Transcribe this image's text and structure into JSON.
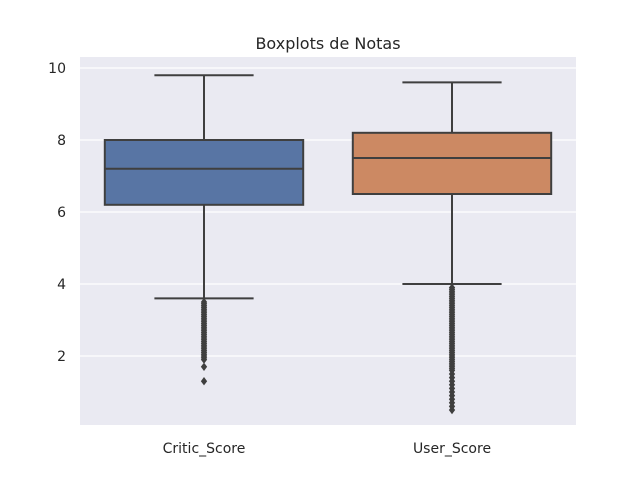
{
  "chart_data": {
    "type": "box",
    "title": "Boxplots de Notas",
    "xlabel": "",
    "ylabel": "",
    "ylim": [
      0,
      10.2
    ],
    "yticks": [
      2,
      4,
      6,
      8,
      10
    ],
    "grid": true,
    "legend": "none",
    "categories": [
      "Critic_Score",
      "User_Score"
    ],
    "boxes": [
      {
        "name": "Critic_Score",
        "color": "#5875a4",
        "whisker_low": 3.6,
        "q1": 6.2,
        "median": 7.2,
        "q3": 8.0,
        "whisker_high": 9.8,
        "outliers": [
          3.5,
          3.45,
          3.4,
          3.35,
          3.3,
          3.25,
          3.2,
          3.15,
          3.1,
          3.05,
          3.0,
          2.95,
          2.9,
          2.85,
          2.8,
          2.75,
          2.7,
          2.65,
          2.6,
          2.55,
          2.5,
          2.45,
          2.4,
          2.35,
          2.3,
          2.25,
          2.2,
          2.15,
          2.1,
          2.05,
          2.0,
          1.95,
          1.9,
          1.7,
          1.3
        ]
      },
      {
        "name": "User_Score",
        "color": "#cc8963",
        "whisker_low": 4.0,
        "q1": 6.5,
        "median": 7.5,
        "q3": 8.2,
        "whisker_high": 9.6,
        "outliers": [
          3.9,
          3.85,
          3.8,
          3.75,
          3.7,
          3.65,
          3.6,
          3.55,
          3.5,
          3.45,
          3.4,
          3.35,
          3.3,
          3.25,
          3.2,
          3.15,
          3.1,
          3.05,
          3.0,
          2.95,
          2.9,
          2.85,
          2.8,
          2.75,
          2.7,
          2.65,
          2.6,
          2.55,
          2.5,
          2.45,
          2.4,
          2.35,
          2.3,
          2.25,
          2.2,
          2.15,
          2.1,
          2.05,
          2.0,
          1.95,
          1.9,
          1.85,
          1.8,
          1.75,
          1.7,
          1.65,
          1.6,
          1.5,
          1.4,
          1.3,
          1.2,
          1.1,
          1.0,
          0.9,
          0.8,
          0.7,
          0.6,
          0.5
        ]
      }
    ]
  }
}
